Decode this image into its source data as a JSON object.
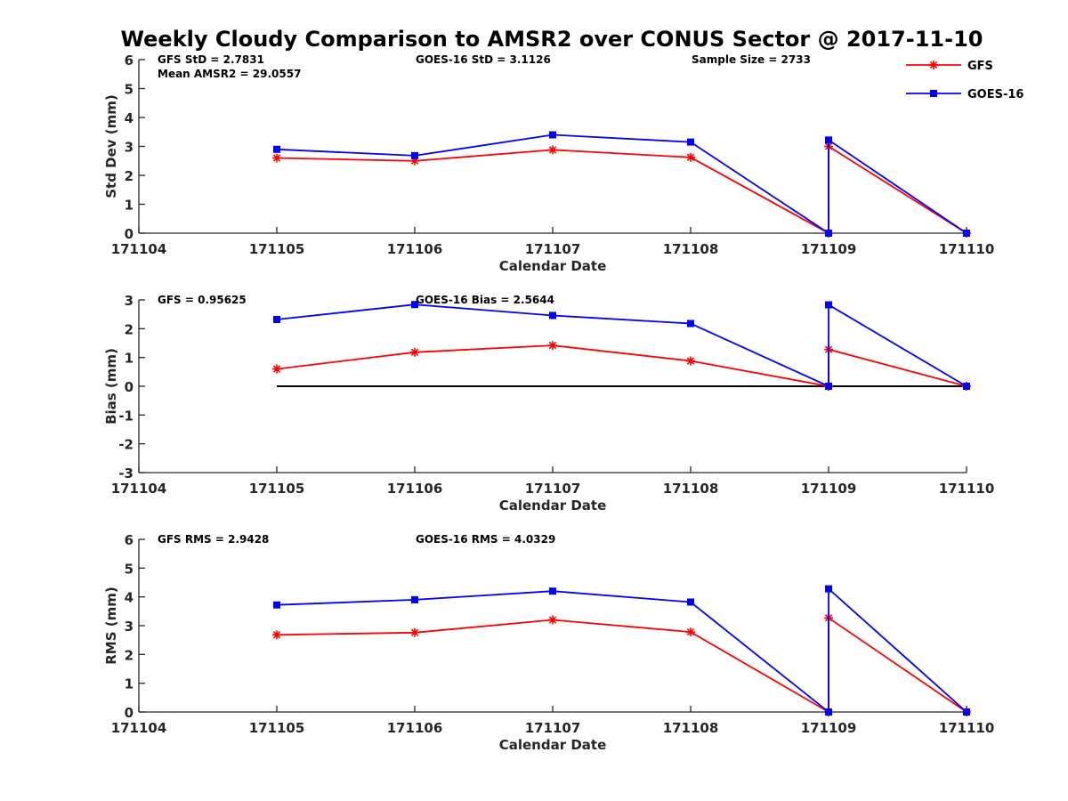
{
  "title": "Weekly Cloudy Comparison to AMSR2 over CONUS Sector @ 2017-11-10",
  "legend": {
    "placement": "top-right",
    "entries": [
      {
        "name": "GFS",
        "color": "#ff0000",
        "marker": "asterisk"
      },
      {
        "name": "GOES-16",
        "color": "#0000ff",
        "marker": "square"
      }
    ]
  },
  "chart_data": [
    {
      "type": "line",
      "xlabel": "Calendar Date",
      "ylabel": "Std Dev (mm)",
      "xlim": [
        171104,
        171110
      ],
      "xticks": [
        "171104",
        "171105",
        "171106",
        "171107",
        "171108",
        "171109",
        "171110"
      ],
      "ylim": [
        0,
        6
      ],
      "yticks": [
        "0",
        "1",
        "2",
        "3",
        "4",
        "5",
        "6"
      ],
      "annotations": [
        "GFS StD = 2.7831",
        "Mean AMSR2 = 29.0557",
        "GOES-16 StD = 3.1126",
        "Sample Size = 2733"
      ],
      "zero_line": false,
      "x": [
        171105,
        171106,
        171107,
        171108,
        171109,
        171109,
        171110
      ],
      "series": [
        {
          "name": "GFS",
          "color": "#ff0000",
          "marker": "asterisk",
          "values": [
            2.6,
            2.5,
            2.88,
            2.62,
            0.0,
            3.0,
            0.0
          ]
        },
        {
          "name": "GOES-16",
          "color": "#0000ff",
          "marker": "square",
          "values": [
            2.9,
            2.68,
            3.4,
            3.15,
            0.0,
            3.22,
            0.0
          ]
        }
      ]
    },
    {
      "type": "line",
      "xlabel": "Calendar Date",
      "ylabel": "Bias (mm)",
      "xlim": [
        171104,
        171110
      ],
      "xticks": [
        "171104",
        "171105",
        "171106",
        "171107",
        "171108",
        "171109",
        "171110"
      ],
      "ylim": [
        -3,
        3
      ],
      "yticks": [
        "-3",
        "-2",
        "-1",
        "0",
        "1",
        "2",
        "3"
      ],
      "annotations": [
        "GFS = 0.95625",
        "GOES-16 Bias  = 2.5644"
      ],
      "zero_line": true,
      "x": [
        171105,
        171106,
        171107,
        171108,
        171109,
        171109,
        171110
      ],
      "series": [
        {
          "name": "GFS",
          "color": "#ff0000",
          "marker": "asterisk",
          "values": [
            0.6,
            1.18,
            1.42,
            0.88,
            0.0,
            1.28,
            0.0
          ]
        },
        {
          "name": "GOES-16",
          "color": "#0000ff",
          "marker": "square",
          "values": [
            2.32,
            2.84,
            2.46,
            2.18,
            0.0,
            2.83,
            0.0
          ]
        }
      ]
    },
    {
      "type": "line",
      "xlabel": "Calendar Date",
      "ylabel": "RMS (mm)",
      "xlim": [
        171104,
        171110
      ],
      "xticks": [
        "171104",
        "171105",
        "171106",
        "171107",
        "171108",
        "171109",
        "171110"
      ],
      "ylim": [
        0,
        6
      ],
      "yticks": [
        "0",
        "1",
        "2",
        "3",
        "4",
        "5",
        "6"
      ],
      "annotations": [
        "GFS RMS = 2.9428",
        "GOES-16 RMS = 4.0329"
      ],
      "zero_line": false,
      "x": [
        171105,
        171106,
        171107,
        171108,
        171109,
        171109,
        171110
      ],
      "series": [
        {
          "name": "GFS",
          "color": "#ff0000",
          "marker": "asterisk",
          "values": [
            2.68,
            2.76,
            3.2,
            2.78,
            0.0,
            3.27,
            0.0
          ]
        },
        {
          "name": "GOES-16",
          "color": "#0000ff",
          "marker": "square",
          "values": [
            3.72,
            3.9,
            4.2,
            3.82,
            0.0,
            4.28,
            0.0
          ]
        }
      ]
    }
  ]
}
